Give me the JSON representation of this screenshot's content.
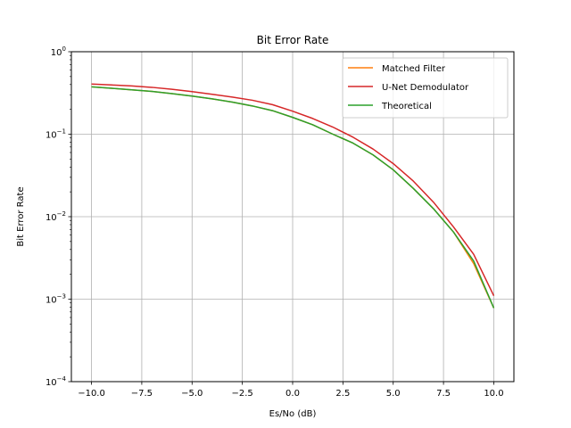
{
  "chart_data": {
    "type": "line",
    "title": "Bit Error Rate",
    "xlabel": "Es/No (dB)",
    "ylabel": "Bit Error Rate",
    "xlim": [
      -11,
      11
    ],
    "ylim": [
      0.0001,
      1
    ],
    "yscale": "log",
    "grid": true,
    "legend_position": "top-right",
    "x_ticks": [
      -10,
      -7.5,
      -5,
      -2.5,
      0,
      2.5,
      5,
      7.5,
      10
    ],
    "x_tick_labels": [
      "−10.0",
      "−7.5",
      "−5.0",
      "−2.5",
      "0.0",
      "2.5",
      "5.0",
      "7.5",
      "10.0"
    ],
    "y_ticks": [
      {
        "value": 0.0001,
        "base": "10",
        "exp": "−4"
      },
      {
        "value": 0.001,
        "base": "10",
        "exp": "−3"
      },
      {
        "value": 0.01,
        "base": "10",
        "exp": "−2"
      },
      {
        "value": 0.1,
        "base": "10",
        "exp": "−1"
      },
      {
        "value": 1,
        "base": "10",
        "exp": "0"
      }
    ],
    "x": [
      -10,
      -9,
      -8,
      -7,
      -6,
      -5,
      -4,
      -3,
      -2,
      -1,
      0,
      1,
      2,
      3,
      4,
      5,
      6,
      7,
      8,
      9,
      10
    ],
    "series": [
      {
        "name": "Matched Filter",
        "color": "#ff7f0e",
        "values": [
          0.375,
          0.36,
          0.345,
          0.33,
          0.31,
          0.29,
          0.268,
          0.245,
          0.22,
          0.193,
          0.16,
          0.13,
          0.1,
          0.078,
          0.056,
          0.037,
          0.022,
          0.0125,
          0.0065,
          0.0027,
          0.00078
        ]
      },
      {
        "name": "U-Net Demodulator",
        "color": "#d62728",
        "values": [
          0.405,
          0.395,
          0.385,
          0.37,
          0.35,
          0.328,
          0.305,
          0.282,
          0.258,
          0.228,
          0.19,
          0.155,
          0.122,
          0.092,
          0.066,
          0.044,
          0.027,
          0.015,
          0.0075,
          0.0035,
          0.0011
        ]
      },
      {
        "name": "Theoretical",
        "color": "#2ca02c",
        "values": [
          0.375,
          0.36,
          0.345,
          0.33,
          0.31,
          0.29,
          0.268,
          0.245,
          0.22,
          0.193,
          0.16,
          0.13,
          0.1,
          0.078,
          0.056,
          0.037,
          0.022,
          0.0125,
          0.0065,
          0.0029,
          0.00078
        ]
      }
    ]
  }
}
